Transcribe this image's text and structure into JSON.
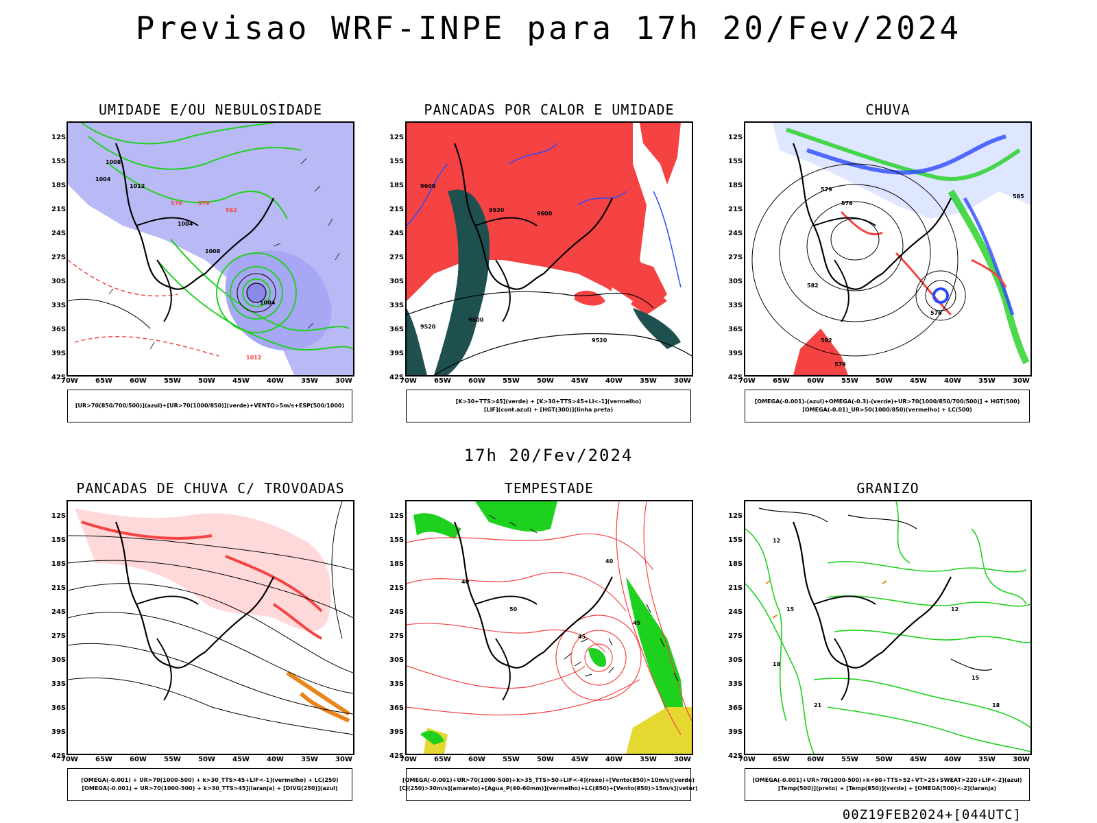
{
  "header": {
    "title": "Previsao WRF-INPE  para 17h 20/Fev/2024"
  },
  "subtitle": "17h 20/Fev/2024",
  "footer": "00Z19FEB2024+[044UTC]",
  "axes": {
    "lat_labels": [
      "12S",
      "15S",
      "18S",
      "21S",
      "24S",
      "27S",
      "30S",
      "33S",
      "36S",
      "39S",
      "42S"
    ],
    "lon_labels": [
      "70W",
      "65W",
      "60W",
      "55W",
      "50W",
      "45W",
      "40W",
      "35W",
      "30W"
    ]
  },
  "panels": [
    {
      "title": "UMIDADE E/OU NEBULOSIDADE",
      "legend": [
        "[UR>70(850/700/500)](azul)+[UR>70(1000/850)](verde)+VENTO>5m/s+ESP(500/1000)"
      ],
      "contour_labels": [
        "1004",
        "1008",
        "1012",
        "1004",
        "1008",
        "1004",
        "576",
        "579",
        "582",
        "1012"
      ]
    },
    {
      "title": "PANCADAS POR CALOR E UMIDADE",
      "legend": [
        "[K>30+TTS>45](verde) + [K>30+TTS>45+LI<-1](vermelho)",
        "[LIF](cont.azul) + [HGT(300)](linha preta)"
      ],
      "contour_labels": [
        "9600",
        "9520",
        "9600",
        "9520",
        "9600",
        "9520"
      ]
    },
    {
      "title": "CHUVA",
      "legend": [
        "[OMEGA(-0.001)-(azul)+OMEGA(-0.3)-(verde)+UR>70(1000/850/700/500)] + HGT(500)",
        "[OMEGA(-0.01)_UR>50(1000/850)(vermelho) + LC(500)"
      ],
      "contour_labels": [
        "579",
        "576",
        "582",
        "585",
        "582",
        "576",
        "579"
      ]
    },
    {
      "title": "PANCADAS DE CHUVA C/ TROVOADAS",
      "legend": [
        "[OMEGA(-0.001) + UR>70(1000-500) + k>30_TTS>45+LIF<-1](vermelho) + LC(250)",
        "[OMEGA(-0.001) + UR>70(1000-500) + k>30_TTS>45](laranja) + [DIVG(250)](azul)"
      ],
      "contour_labels": []
    },
    {
      "title": "TEMPESTADE",
      "legend": [
        "[OMEGA(-0.001)+UR>70(1000-500)+k>35_TTS>50+LIF<-4](roxo)+[Vento(850)>10m/s](verde)",
        "[CJ(250)>30m/s](amarelo)+[Agua_P(40-60mm)](vermelho)+LC(850)+[Vento(850)>15m/s](vetor)"
      ],
      "contour_labels": [
        "40",
        "50",
        "45",
        "40",
        "45"
      ]
    },
    {
      "title": "GRANIZO",
      "legend": [
        "[OMEGA(-0.001)+UR>70(1000-500)+k<60+TTS>52+VT>25+SWEAT>220+LIF<-2](azul)",
        "[Temp(500)](preto) + [Temp(850)](verde) + [OMEGA(500)<-2](laranja)"
      ],
      "contour_labels": [
        "12",
        "15",
        "18",
        "21",
        "12",
        "15",
        "18"
      ]
    }
  ],
  "colors": {
    "blue_fill": "#a7a7f5",
    "green": "#1fd11f",
    "red": "#f54242",
    "dark_teal": "#1f5050",
    "orange": "#e8861c",
    "yellow": "#e5d831"
  }
}
